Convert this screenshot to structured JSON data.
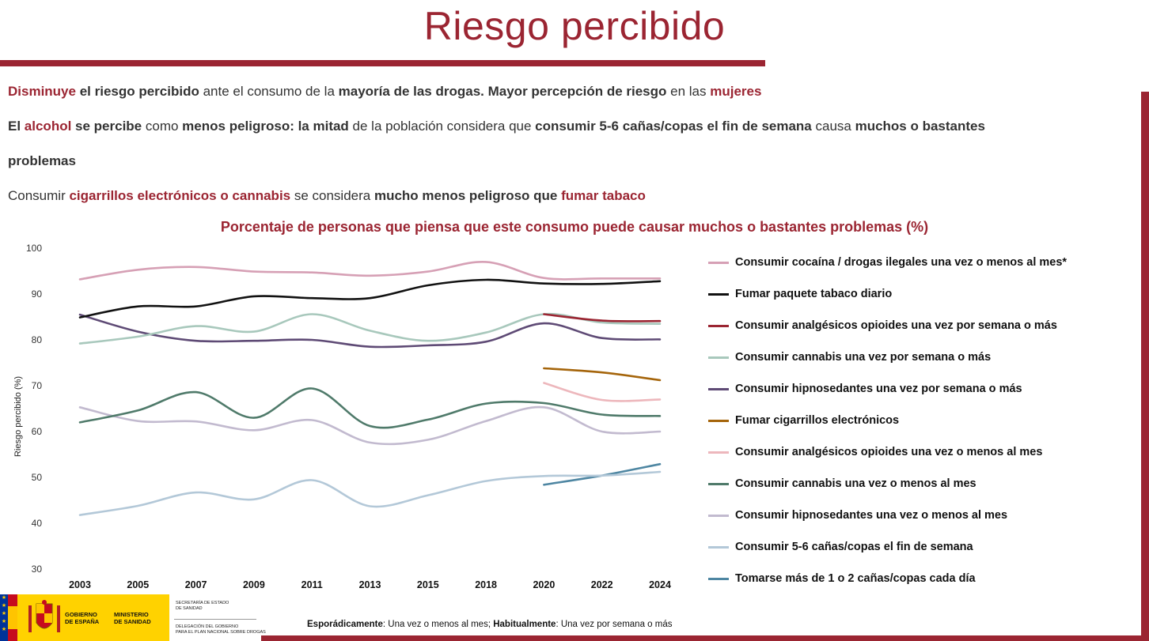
{
  "slide": {
    "title": "Riesgo percibido",
    "chart_heading": "Porcentaje de personas que piensa que este consumo puede causar muchos o bastantes problemas (%)",
    "lines": [
      {
        "runs": [
          {
            "t": "Disminuye",
            "s": "red"
          },
          {
            "t": " el riesgo percibido",
            "s": "bold"
          },
          {
            "t": " ante el consumo de la ",
            "s": ""
          },
          {
            "t": "mayoría de las drogas. Mayor percepción de riesgo",
            "s": "bold"
          },
          {
            "t": " en las ",
            "s": ""
          },
          {
            "t": "mujeres",
            "s": "red"
          }
        ]
      },
      {
        "runs": [
          {
            "t": "El ",
            "s": "bold"
          },
          {
            "t": "alcohol",
            "s": "red"
          },
          {
            "t": " se percibe",
            "s": "bold"
          },
          {
            "t": " como ",
            "s": ""
          },
          {
            "t": "menos peligroso: la mitad",
            "s": "bold"
          },
          {
            "t": " de la población considera que ",
            "s": ""
          },
          {
            "t": "consumir 5-6 cañas/copas el fin de semana",
            "s": "bold"
          },
          {
            "t": " causa ",
            "s": ""
          },
          {
            "t": "muchos o bastantes",
            "s": "bold"
          }
        ]
      },
      {
        "runs": [
          {
            "t": "problemas",
            "s": "bold"
          }
        ]
      },
      {
        "runs": [
          {
            "t": "Consumir ",
            "s": ""
          },
          {
            "t": "cigarrillos electrónicos o cannabis",
            "s": "red"
          },
          {
            "t": " se considera ",
            "s": ""
          },
          {
            "t": "mucho menos peligroso que",
            "s": "bold"
          },
          {
            "t": " ",
            "s": ""
          },
          {
            "t": "fumar tabaco",
            "s": "red"
          }
        ]
      }
    ],
    "footnote": {
      "k1": "Esporádicamente",
      "v1": ": Una vez o menos al mes; ",
      "k2": "Habitualmente",
      "v2": ": Una vez por semana o más"
    },
    "accent_color": "#9B2532"
  },
  "logos": {
    "gobierno": "GOBIERNO\nDE ESPAÑA",
    "ministerio": "MINISTERIO\nDE SANIDAD",
    "secretaria": "SECRETARÍA DE ESTADO\nDE SANIDAD",
    "delegacion": "DELEGACIÓN DEL GOBIERNO\nPARA EL PLAN NACIONAL SOBRE DROGAS"
  },
  "chart_data": {
    "type": "line",
    "title": "Porcentaje de personas que piensa que este consumo puede causar muchos o bastantes problemas (%)",
    "xlabel": "",
    "ylabel": "Riesgo percibido (%)",
    "ylim": [
      30,
      100
    ],
    "yticks": [
      30,
      40,
      50,
      60,
      70,
      80,
      90,
      100
    ],
    "grid": false,
    "legend_position": "right",
    "categories": [
      "2003",
      "2005",
      "2007",
      "2009",
      "2011",
      "2013",
      "2015",
      "2018",
      "2020",
      "2022",
      "2024"
    ],
    "series": [
      {
        "name": "Consumir cocaína / drogas ilegales una vez o menos al mes*",
        "color": "#D6A0B5",
        "values": [
          93.2,
          95.3,
          95.9,
          94.9,
          94.7,
          94.0,
          94.9,
          97.0,
          93.5,
          93.4,
          93.4
        ]
      },
      {
        "name": "Fumar paquete tabaco diario",
        "color": "#111111",
        "values": [
          84.9,
          87.3,
          87.3,
          89.5,
          89.1,
          89.1,
          91.9,
          93.1,
          92.3,
          92.2,
          92.8
        ]
      },
      {
        "name": "Consumir analgésicos opioides una vez por semana o más",
        "color": "#9B2532",
        "values": [
          null,
          null,
          null,
          null,
          null,
          null,
          null,
          null,
          85.6,
          84.2,
          84.1
        ]
      },
      {
        "name": "Consumir cannabis una vez por semana o más",
        "color": "#A8C8BC",
        "values": [
          79.2,
          80.7,
          83.0,
          81.8,
          85.6,
          82.0,
          79.8,
          81.6,
          85.6,
          83.8,
          83.5
        ]
      },
      {
        "name": "Consumir hipnosedantes una vez por semana o más",
        "color": "#5E4A75",
        "values": [
          85.5,
          81.8,
          79.8,
          79.8,
          80.0,
          78.5,
          78.8,
          79.6,
          83.6,
          80.4,
          80.1
        ]
      },
      {
        "name": "Fumar cigarrillos electrónicos",
        "color": "#A5650B",
        "values": [
          null,
          null,
          null,
          null,
          null,
          null,
          null,
          null,
          73.8,
          72.9,
          71.2
        ]
      },
      {
        "name": "Consumir analgésicos opioides una vez o menos al mes",
        "color": "#EDB7BC",
        "values": [
          null,
          null,
          null,
          null,
          null,
          null,
          null,
          null,
          70.6,
          66.9,
          67.0
        ]
      },
      {
        "name": "Consumir cannabis una vez o menos al mes",
        "color": "#4F7A6A",
        "values": [
          62.0,
          64.6,
          68.6,
          63.0,
          69.4,
          61.2,
          62.6,
          66.1,
          66.2,
          63.7,
          63.4
        ]
      },
      {
        "name": "Consumir hipnosedantes una vez o menos al mes",
        "color": "#C2BACF",
        "values": [
          65.3,
          62.3,
          62.2,
          60.3,
          62.5,
          57.6,
          58.2,
          62.3,
          65.3,
          60.0,
          60.0
        ]
      },
      {
        "name": "Consumir 5-6 cañas/copas el fin de semana",
        "color": "#B3C8D8",
        "values": [
          41.8,
          43.8,
          46.7,
          45.2,
          49.4,
          43.7,
          46.1,
          49.2,
          50.3,
          50.4,
          51.2
        ]
      },
      {
        "name": "Tomarse más de 1 o 2 cañas/copas cada día",
        "color": "#4E86A2",
        "values": [
          null,
          null,
          null,
          null,
          null,
          null,
          null,
          null,
          48.4,
          50.4,
          52.9
        ]
      }
    ]
  }
}
